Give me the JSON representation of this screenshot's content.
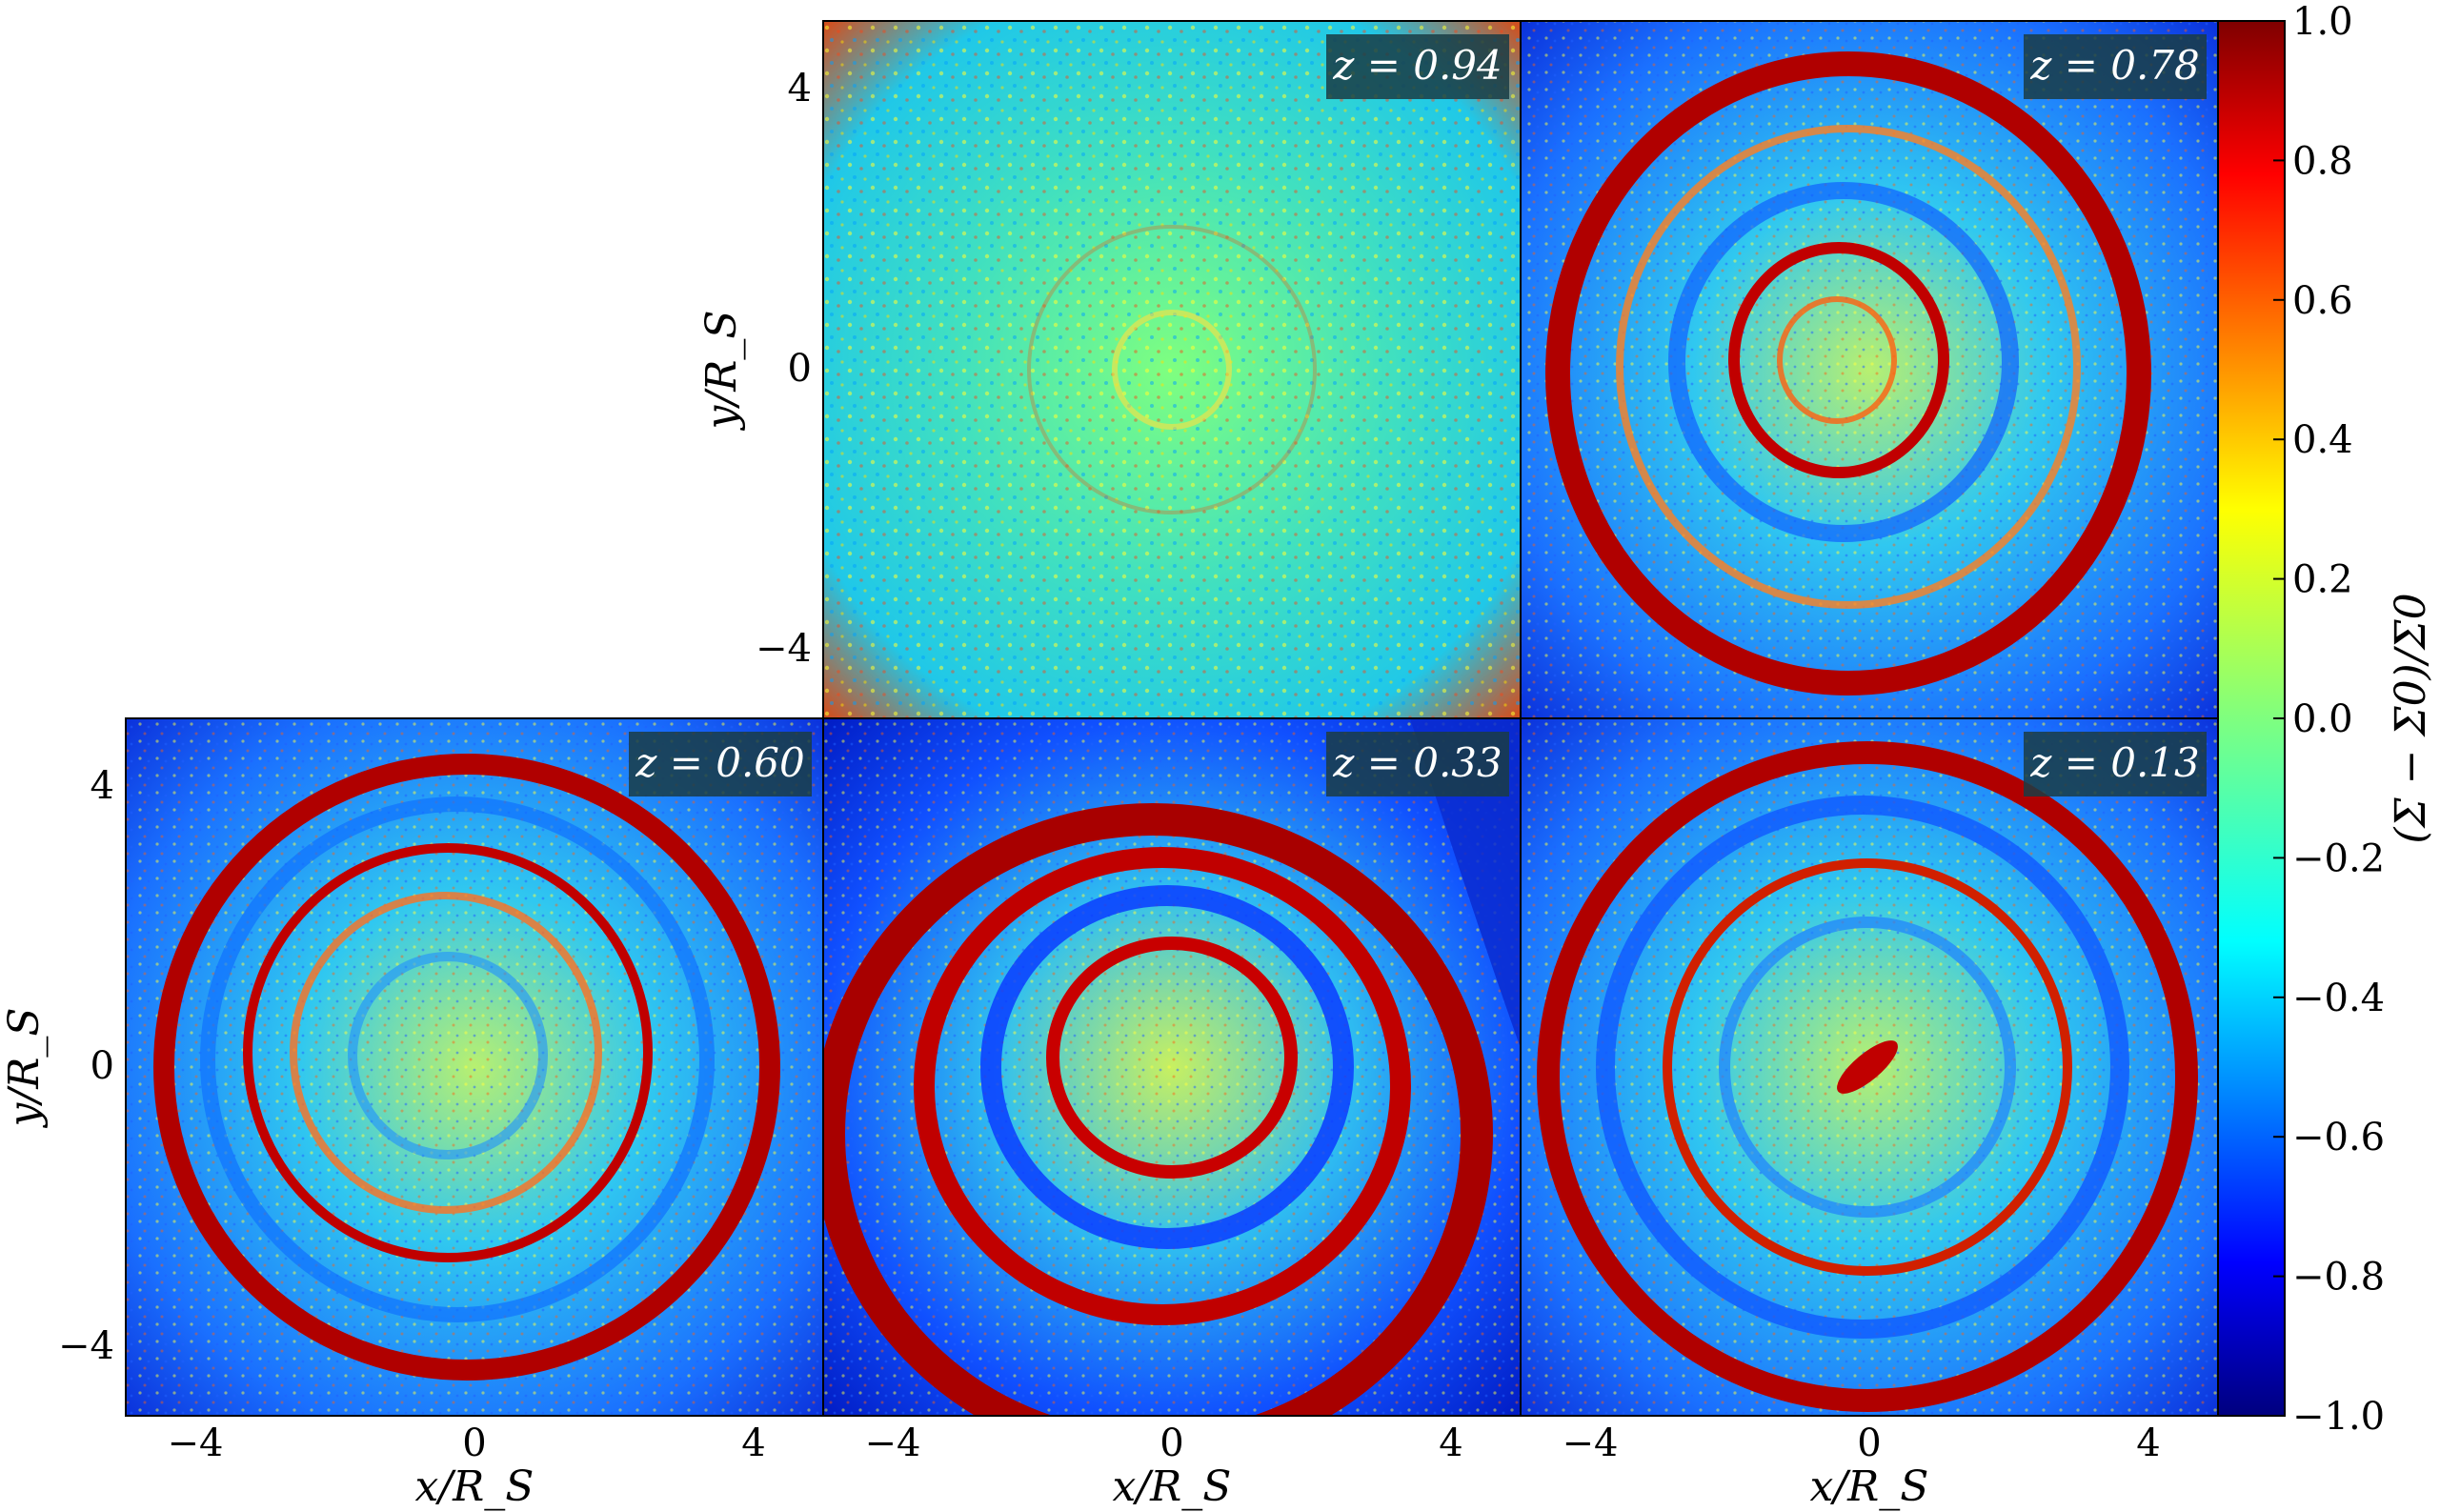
{
  "panels": [
    {
      "id": "p1",
      "z_label": "z = 0.94"
    },
    {
      "id": "p2",
      "z_label": "z = 0.78"
    },
    {
      "id": "p3",
      "z_label": "z = 0.60"
    },
    {
      "id": "p4",
      "z_label": "z = 0.33"
    },
    {
      "id": "p5",
      "z_label": "z = 0.13"
    }
  ],
  "axes": {
    "xlabel": "x/R_S",
    "ylabel": "y/R_S",
    "x_ticks": [
      "−4",
      "0",
      "4"
    ],
    "y_ticks": [
      "4",
      "0",
      "−4"
    ]
  },
  "colorbar": {
    "label": "(Σ − Σ0)/Σ0",
    "ticks": [
      "1.0",
      "0.8",
      "0.6",
      "0.4",
      "0.2",
      "0.0",
      "−0.2",
      "−0.4",
      "−0.6",
      "−0.8",
      "−1.0"
    ],
    "colormap": [
      "#00007f",
      "#0000ff",
      "#007fff",
      "#00ffff",
      "#7fff7f",
      "#ffff00",
      "#ff7f00",
      "#ff0000",
      "#7f0000"
    ]
  }
}
